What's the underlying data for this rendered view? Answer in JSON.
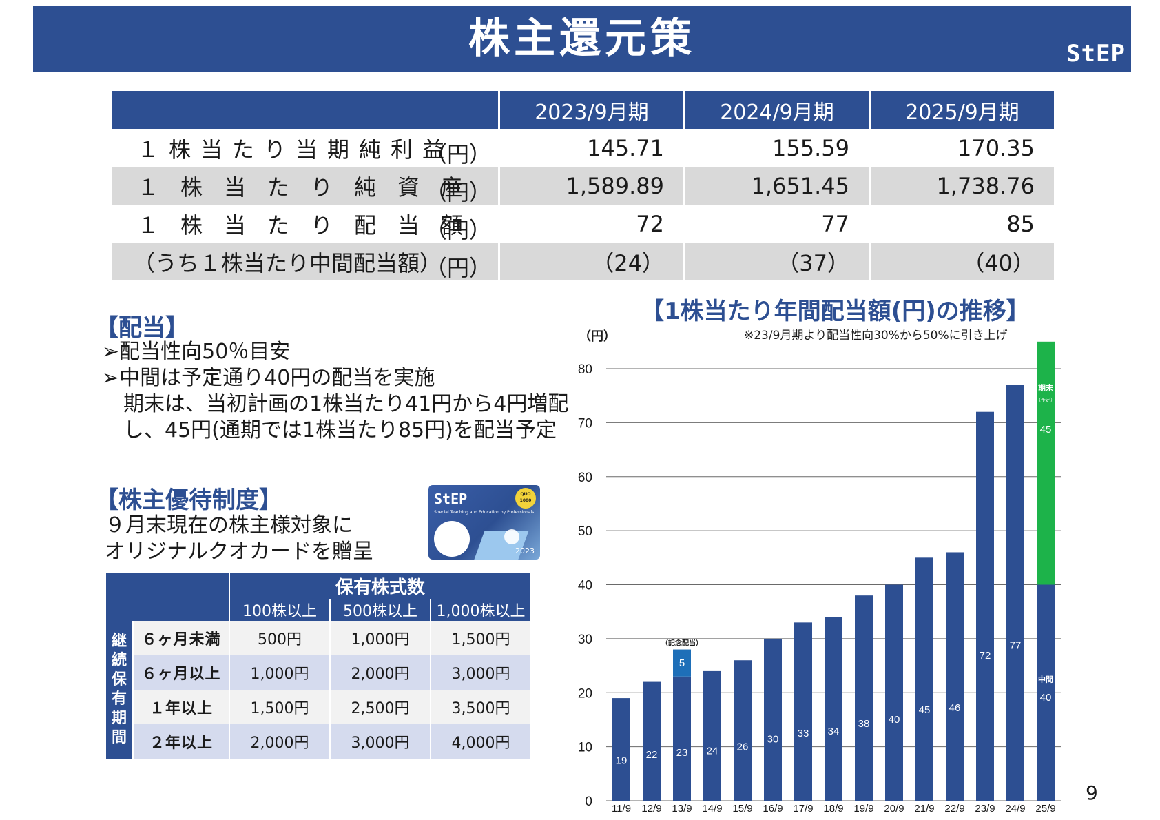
{
  "header": {
    "title": "株主還元策",
    "logo": "StEP"
  },
  "per_share": {
    "years": [
      "2023/9月期",
      "2024/9月期",
      "2025/9月期"
    ],
    "rows": [
      {
        "label": "１株当たり当期純利益",
        "unit": "（円）",
        "values": [
          "145.71",
          "155.59",
          "170.35"
        ]
      },
      {
        "label": "１株当たり純資産",
        "unit": "（円）",
        "values": [
          "1,589.89",
          "1,651.45",
          "1,738.76"
        ]
      },
      {
        "label": "１株当たり配当額",
        "unit": "（円）",
        "values": [
          "72",
          "77",
          "85"
        ]
      },
      {
        "label": "（うち１株当たり中間配当額）",
        "unit": "（円）",
        "values": [
          "（24）",
          "（37）",
          "（40）"
        ]
      }
    ]
  },
  "dividend": {
    "heading": "【配当】",
    "bullet_marker": "➢",
    "bullets": [
      "配当性向50％目安",
      "中間は予定通り40円の配当を実施"
    ],
    "lines": [
      "期末は、当初計画の1株当たり41円から4円増配",
      "し、45円(通期では1株当たり85円)を配当予定"
    ]
  },
  "benefit": {
    "heading": "【株主優待制度】",
    "lines": [
      "９月末現在の株主様対象に",
      "オリジナルクオカードを贈呈"
    ],
    "card": {
      "logo": "StEP",
      "subtitle": "Special Teaching and Education by Professionals",
      "year": "2023",
      "badge": "QUO 1000"
    },
    "table": {
      "group_header": "保有株式数",
      "side_header": "継続保有期間",
      "columns": [
        "100株以上",
        "500株以上",
        "1,000株以上"
      ],
      "rows": [
        {
          "label": "６ヶ月未満",
          "values": [
            "500円",
            "1,000円",
            "1,500円"
          ]
        },
        {
          "label": "６ヶ月以上",
          "values": [
            "1,000円",
            "2,000円",
            "3,000円"
          ]
        },
        {
          "label": "１年以上",
          "values": [
            "1,500円",
            "2,500円",
            "3,500円"
          ]
        },
        {
          "label": "２年以上",
          "values": [
            "2,000円",
            "3,000円",
            "4,000円"
          ]
        }
      ]
    }
  },
  "chart_data": {
    "type": "bar",
    "title": "【1株当たり年間配当額(円)の推移】",
    "ylabel": "（円）",
    "note": "※23/9月期より配当性向30%から50%に引き上げ",
    "ylim": [
      0,
      80
    ],
    "yticks": [
      0,
      10,
      20,
      30,
      40,
      50,
      60,
      70,
      80
    ],
    "grid": true,
    "categories": [
      "11/9",
      "12/9",
      "13/9",
      "14/9",
      "15/9",
      "16/9",
      "17/9",
      "18/9",
      "19/9",
      "20/9",
      "21/9",
      "22/9",
      "23/9",
      "24/9",
      "25/9"
    ],
    "series": [
      {
        "values": [
          19,
          22,
          23,
          24,
          26,
          30,
          33,
          34,
          38,
          40,
          45,
          46,
          72,
          77,
          40
        ],
        "color": "#2d4f92"
      },
      {
        "values": [
          0,
          0,
          5,
          0,
          0,
          0,
          0,
          0,
          0,
          0,
          0,
          0,
          0,
          0,
          0
        ],
        "color": "#1e6fb8"
      },
      {
        "values": [
          0,
          0,
          0,
          0,
          0,
          0,
          0,
          0,
          0,
          0,
          0,
          0,
          0,
          0,
          45
        ],
        "color": "#1db34a"
      }
    ],
    "annotations": {
      "commemorative": "（記念配当）",
      "interim": "中間",
      "year_end": "期末",
      "planned": "（予定）"
    }
  },
  "page_number": "9"
}
